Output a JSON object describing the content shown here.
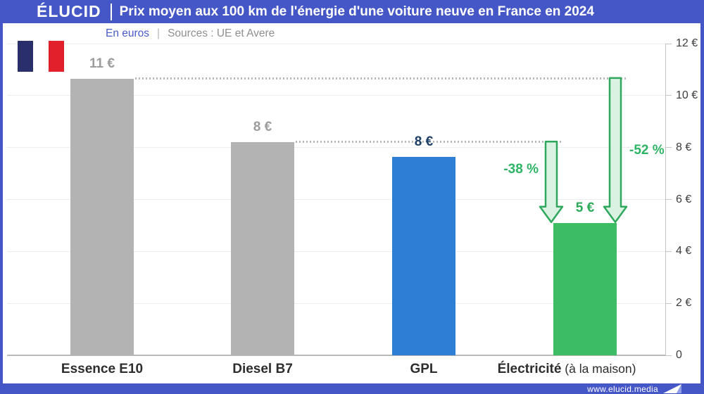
{
  "header": {
    "brand": "ÉLUCID",
    "title": "Prix moyen aux 100 km de l'énergie d'une voiture neuve en France en 2024"
  },
  "subtitle": {
    "unit": "En euros",
    "separator": "|",
    "sources": "Sources : UE et Avere"
  },
  "footer": {
    "website": "www.elucid.media"
  },
  "flag": {
    "name": "france-flag",
    "stripe_colors": [
      "#282f6b",
      "#ffffff",
      "#e1202c"
    ]
  },
  "colors": {
    "brand_blue": "#4557c7",
    "grid": "#ededed",
    "axis_line": "#c6c6c6",
    "baseline": "#b9b9b9",
    "dotted_line": "#b9b9b9",
    "axis_text": "#3d3d3d",
    "category_text": "#2d2d2d",
    "arrow_fill": "#d9f2e1",
    "arrow_stroke": "#2fa75c",
    "annotation_text": "#2eb465",
    "subtitle_unit": "#4a5ac8",
    "subtitle_separator": "#b5b5b5",
    "subtitle_sources": "#8f8f8f"
  },
  "chart_data": {
    "type": "bar",
    "title": "Prix moyen aux 100 km de l'énergie d'une voiture neuve en France en 2024",
    "xlabel": "",
    "ylabel": "En euros",
    "ylim": [
      0,
      12
    ],
    "grid": true,
    "axis_side": "right",
    "yticks": [
      {
        "value": 0,
        "label": "0"
      },
      {
        "value": 2,
        "label": "2 €"
      },
      {
        "value": 4,
        "label": "4 €"
      },
      {
        "value": 6,
        "label": "6 €"
      },
      {
        "value": 8,
        "label": "8 €"
      },
      {
        "value": 10,
        "label": "10 €"
      },
      {
        "value": 12,
        "label": "12 €"
      }
    ],
    "categories": [
      "Essence E10",
      "Diesel B7",
      "GPL",
      "Électricité (à la maison)"
    ],
    "values": [
      11,
      8,
      8,
      5
    ],
    "bars": [
      {
        "category_bold": "Essence E10",
        "category_rest": "",
        "value": 11,
        "value_label": "11 €",
        "plotted_value": 10.65,
        "color": "#b3b3b3",
        "value_label_color": "#9c9c9c"
      },
      {
        "category_bold": "Diesel B7",
        "category_rest": "",
        "value": 8,
        "value_label": "8 €",
        "plotted_value": 8.2,
        "color": "#b3b3b3",
        "value_label_color": "#9c9c9c"
      },
      {
        "category_bold": "GPL",
        "category_rest": "",
        "value": 8,
        "value_label": "8 €",
        "plotted_value": 7.65,
        "color": "#2f7ed6",
        "value_label_color": "#1d4066"
      },
      {
        "category_bold": "Électricité",
        "category_rest": " (à la maison)",
        "value": 5,
        "value_label": "5 €",
        "plotted_value": 5.1,
        "color": "#3cbc63",
        "value_label_color": "#2bab59"
      }
    ],
    "annotations": [
      {
        "text": "-38 %",
        "from": "Diesel B7",
        "to": "Électricité (à la maison)",
        "from_index": 1,
        "to_index": 3,
        "side": "left"
      },
      {
        "text": "-52 %",
        "from": "Essence E10",
        "to": "Électricité (à la maison)",
        "from_index": 0,
        "to_index": 3,
        "side": "right"
      }
    ]
  }
}
